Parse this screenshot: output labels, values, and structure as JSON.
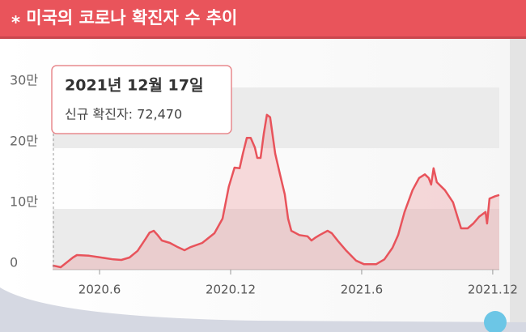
{
  "chart_data": {
    "type": "area",
    "title": "⁎ 미국의 코로나 확진자 수 추이",
    "annotation": {
      "date": "2021년 12월 17일",
      "text": "신규 확진자: 72,470"
    },
    "color": "#e8535b",
    "xlim": [
      3.85,
      24.3
    ],
    "xticks": [
      {
        "value": 6,
        "label": "2020.6"
      },
      {
        "value": 12,
        "label": "2020.12"
      },
      {
        "value": 18,
        "label": "2021.6"
      },
      {
        "value": 24,
        "label": "2021.12"
      }
    ],
    "ylim": [
      0,
      300000
    ],
    "yticks": [
      0,
      {
        "value": 100000,
        "label": "10만"
      },
      {
        "value": 200000,
        "label": "20만"
      },
      {
        "value": 300000,
        "label": "30만"
      }
    ],
    "x": [
      3.85,
      4.22,
      4.78,
      4.96,
      5.52,
      6.07,
      6.63,
      7.0,
      7.37,
      7.74,
      8.11,
      8.29,
      8.48,
      8.66,
      8.85,
      9.22,
      9.59,
      9.89,
      10.15,
      10.7,
      11.26,
      11.63,
      11.92,
      12.18,
      12.41,
      12.56,
      12.74,
      12.92,
      13.11,
      13.22,
      13.37,
      13.52,
      13.66,
      13.81,
      14.04,
      14.26,
      14.48,
      14.63,
      14.78,
      15.15,
      15.52,
      15.7,
      15.89,
      16.07,
      16.44,
      16.63,
      16.92,
      17.3,
      17.74,
      18.11,
      18.66,
      19.04,
      19.41,
      19.67,
      19.96,
      20.33,
      20.63,
      20.89,
      21.07,
      21.18,
      21.29,
      21.44,
      21.81,
      22.18,
      22.41,
      22.55,
      22.85,
      23.11,
      23.37,
      23.67,
      23.74,
      23.85,
      24.11,
      24.3
    ],
    "values": [
      7000,
      4000,
      20000,
      24000,
      23000,
      20000,
      17000,
      16000,
      20000,
      31000,
      51000,
      61000,
      64000,
      57000,
      48000,
      44000,
      37000,
      32000,
      37000,
      44000,
      60000,
      84000,
      137000,
      168000,
      167000,
      191000,
      217000,
      217000,
      201000,
      184000,
      184000,
      224000,
      255000,
      251000,
      191000,
      157000,
      124000,
      84000,
      64000,
      57000,
      55000,
      48000,
      53000,
      57000,
      64000,
      60000,
      47000,
      31000,
      15000,
      9000,
      9000,
      17000,
      36000,
      57000,
      95000,
      131000,
      151000,
      157000,
      151000,
      140000,
      167000,
      144000,
      131000,
      111000,
      84000,
      68000,
      68000,
      76000,
      87000,
      95000,
      76000,
      117000,
      121000,
      123000
    ]
  }
}
